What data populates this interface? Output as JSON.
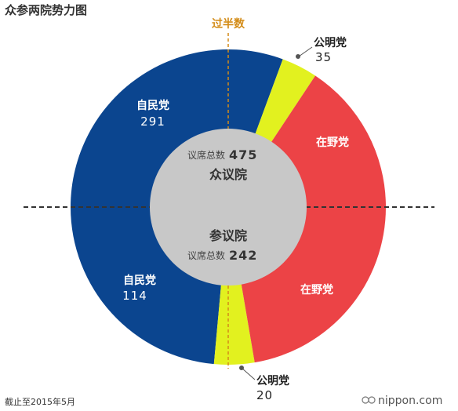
{
  "title": "众参两院势力图",
  "majority_label": "过半数",
  "footnote": "截止至2015年5月",
  "brand": "nippon.com",
  "colors": {
    "ldp": "#0b458f",
    "komeito": "#e2f11f",
    "opposition": "#ec4346",
    "center": "#c8c8c8",
    "majority_line": "#d38c18",
    "divider": "#333333"
  },
  "chart_data": [
    {
      "type": "pie",
      "title": "众议院",
      "total_label": "议席总数",
      "total": 475,
      "slices": [
        {
          "name": "自民党",
          "value": 291,
          "color": "#0b458f"
        },
        {
          "name": "公明党",
          "value": 35,
          "color": "#e2f11f"
        },
        {
          "name": "在野党",
          "value": 149,
          "color": "#ec4346"
        }
      ]
    },
    {
      "type": "pie",
      "title": "参议院",
      "total_label": "议席总数",
      "total": 242,
      "slices": [
        {
          "name": "自民党",
          "value": 114,
          "color": "#0b458f"
        },
        {
          "name": "公明党",
          "value": 20,
          "color": "#e2f11f"
        },
        {
          "name": "在野党",
          "value": 108,
          "color": "#ec4346"
        }
      ]
    }
  ]
}
